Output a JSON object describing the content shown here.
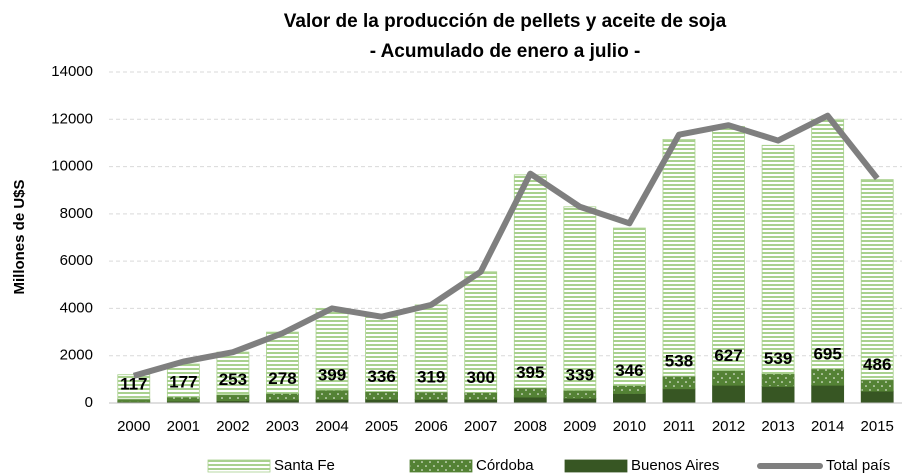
{
  "chart_data": {
    "type": "bar",
    "stacked": true,
    "title": "Valor de la producción de pellets y aceite de soja",
    "subtitle": "-  Acumulado de enero a julio -",
    "y_label": "Millones de U$S",
    "categories": [
      "2000",
      "2001",
      "2002",
      "2003",
      "2004",
      "2005",
      "2006",
      "2007",
      "2008",
      "2009",
      "2010",
      "2011",
      "2012",
      "2013",
      "2014",
      "2015"
    ],
    "series": [
      {
        "name": "Santa Fe",
        "color": "#a9d18e",
        "values": [
          1030,
          1390,
          1800,
          2590,
          3450,
          3210,
          3680,
          5100,
          9005,
          7760,
          6654,
          10012,
          10323,
          9661,
          10555,
          8464
        ]
      },
      {
        "name": "Córdoba",
        "color": "#548235",
        "values": [
          117,
          177,
          253,
          278,
          399,
          336,
          319,
          300,
          395,
          339,
          346,
          538,
          627,
          539,
          695,
          486
        ],
        "labels": true
      },
      {
        "name": "Buenos Aires",
        "color": "#375623",
        "values": [
          50,
          80,
          100,
          130,
          150,
          150,
          150,
          150,
          250,
          200,
          400,
          600,
          750,
          700,
          750,
          500
        ]
      },
      {
        "name": "Total país",
        "color": "#7f7f7f",
        "type": "line",
        "values": [
          1150,
          1750,
          2150,
          2950,
          4000,
          3650,
          4150,
          5550,
          9700,
          8300,
          7600,
          11350,
          11750,
          11100,
          12150,
          9500
        ]
      }
    ],
    "ylim": [
      0,
      14000
    ],
    "yticks": [
      0,
      2000,
      4000,
      6000,
      8000,
      10000,
      12000,
      14000
    ],
    "grid": true,
    "legend": "bottom"
  }
}
